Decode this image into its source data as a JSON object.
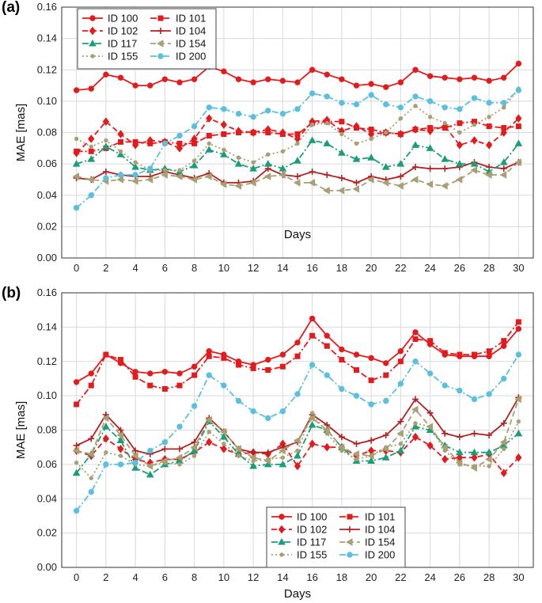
{
  "chart_data": [
    {
      "type": "line",
      "panel_label": "(a)",
      "xlabel": "Days",
      "ylabel": "MAE [mas]",
      "xlim": [
        -1,
        31
      ],
      "ylim": [
        0,
        0.16
      ],
      "xticks": [
        "0",
        "2",
        "4",
        "6",
        "8",
        "10",
        "12",
        "14",
        "16",
        "18",
        "20",
        "22",
        "24",
        "26",
        "28",
        "30"
      ],
      "yticks": [
        "0.00",
        "0.02",
        "0.04",
        "0.06",
        "0.08",
        "0.10",
        "0.12",
        "0.14",
        "0.16"
      ],
      "grid": true,
      "legend_position": "top-left",
      "x": [
        0,
        1,
        2,
        3,
        4,
        5,
        6,
        7,
        8,
        9,
        10,
        11,
        12,
        13,
        14,
        15,
        16,
        17,
        18,
        19,
        20,
        21,
        22,
        23,
        24,
        25,
        26,
        27,
        28,
        29,
        30
      ],
      "series": [
        {
          "name": "ID 100",
          "color": "#e41a1c",
          "style": "solid",
          "marker": "circle",
          "values": [
            0.107,
            0.108,
            0.117,
            0.115,
            0.11,
            0.11,
            0.114,
            0.112,
            0.114,
            0.122,
            0.119,
            0.114,
            0.112,
            0.114,
            0.113,
            0.112,
            0.12,
            0.117,
            0.114,
            0.11,
            0.111,
            0.109,
            0.112,
            0.12,
            0.116,
            0.115,
            0.114,
            0.115,
            0.113,
            0.115,
            0.124
          ]
        },
        {
          "name": "ID 101",
          "color": "#e41a1c",
          "style": "dashdot",
          "marker": "square",
          "values": [
            0.068,
            0.068,
            0.07,
            0.074,
            0.074,
            0.073,
            0.074,
            0.073,
            0.073,
            0.078,
            0.079,
            0.08,
            0.08,
            0.08,
            0.079,
            0.079,
            0.086,
            0.087,
            0.087,
            0.083,
            0.082,
            0.08,
            0.079,
            0.082,
            0.083,
            0.083,
            0.086,
            0.087,
            0.084,
            0.083,
            0.084
          ]
        },
        {
          "name": "ID 102",
          "color": "#e41a1c",
          "style": "dashed",
          "marker": "diamond",
          "values": [
            0.067,
            0.076,
            0.087,
            0.079,
            0.072,
            0.075,
            0.074,
            0.07,
            0.076,
            0.089,
            0.085,
            0.081,
            0.08,
            0.082,
            0.08,
            0.076,
            0.087,
            0.088,
            0.081,
            0.084,
            0.079,
            0.08,
            0.079,
            0.082,
            0.081,
            0.084,
            0.072,
            0.075,
            0.072,
            0.08,
            0.089
          ]
        },
        {
          "name": "ID 104",
          "color": "#b22222",
          "style": "solid",
          "marker": "plus",
          "values": [
            0.051,
            0.05,
            0.055,
            0.053,
            0.052,
            0.052,
            0.055,
            0.053,
            0.051,
            0.054,
            0.048,
            0.048,
            0.049,
            0.057,
            0.053,
            0.052,
            0.055,
            0.053,
            0.051,
            0.048,
            0.052,
            0.05,
            0.052,
            0.058,
            0.057,
            0.057,
            0.058,
            0.061,
            0.058,
            0.057,
            0.061
          ]
        },
        {
          "name": "ID 117",
          "color": "#1a9e77",
          "style": "dashdot",
          "marker": "triangle",
          "values": [
            0.06,
            0.063,
            0.071,
            0.066,
            0.058,
            0.056,
            0.057,
            0.055,
            0.059,
            0.069,
            0.066,
            0.06,
            0.057,
            0.06,
            0.057,
            0.062,
            0.075,
            0.073,
            0.067,
            0.063,
            0.064,
            0.058,
            0.06,
            0.072,
            0.07,
            0.063,
            0.06,
            0.06,
            0.055,
            0.061,
            0.073
          ]
        },
        {
          "name": "ID 154",
          "color": "#a8a073",
          "style": "dashed",
          "marker": "triangle-left",
          "values": [
            0.052,
            0.05,
            0.049,
            0.05,
            0.049,
            0.05,
            0.053,
            0.052,
            0.05,
            0.052,
            0.047,
            0.046,
            0.048,
            0.052,
            0.053,
            0.048,
            0.048,
            0.043,
            0.043,
            0.044,
            0.05,
            0.048,
            0.046,
            0.05,
            0.047,
            0.046,
            0.05,
            0.056,
            0.053,
            0.053,
            0.061
          ]
        },
        {
          "name": "ID 155",
          "color": "#a8a073",
          "style": "dotted",
          "marker": "dot",
          "values": [
            0.076,
            0.071,
            0.075,
            0.068,
            0.061,
            0.056,
            0.056,
            0.056,
            0.062,
            0.073,
            0.069,
            0.064,
            0.061,
            0.066,
            0.068,
            0.073,
            0.085,
            0.086,
            0.079,
            0.073,
            0.076,
            0.08,
            0.089,
            0.097,
            0.09,
            0.086,
            0.08,
            0.085,
            0.09,
            0.096,
            0.108
          ]
        },
        {
          "name": "ID 200",
          "color": "#5bc0de",
          "style": "dashdot",
          "marker": "circle",
          "values": [
            0.032,
            0.04,
            0.051,
            0.053,
            0.053,
            0.057,
            0.073,
            0.078,
            0.084,
            0.096,
            0.095,
            0.092,
            0.09,
            0.094,
            0.092,
            0.095,
            0.105,
            0.103,
            0.099,
            0.098,
            0.104,
            0.098,
            0.096,
            0.103,
            0.1,
            0.096,
            0.095,
            0.102,
            0.099,
            0.099,
            0.107
          ]
        }
      ]
    },
    {
      "type": "line",
      "panel_label": "(b)",
      "xlabel": "Days",
      "ylabel": "MAE [mas]",
      "xlim": [
        -1,
        31
      ],
      "ylim": [
        0,
        0.16
      ],
      "xticks": [
        "0",
        "2",
        "4",
        "6",
        "8",
        "10",
        "12",
        "14",
        "16",
        "18",
        "20",
        "22",
        "24",
        "26",
        "28",
        "30"
      ],
      "yticks": [
        "0.00",
        "0.02",
        "0.04",
        "0.06",
        "0.08",
        "0.10",
        "0.12",
        "0.14",
        "0.16"
      ],
      "grid": true,
      "legend_position": "bottom-center",
      "x": [
        0,
        1,
        2,
        3,
        4,
        5,
        6,
        7,
        8,
        9,
        10,
        11,
        12,
        13,
        14,
        15,
        16,
        17,
        18,
        19,
        20,
        21,
        22,
        23,
        24,
        25,
        26,
        27,
        28,
        29,
        30
      ],
      "series": [
        {
          "name": "ID 100",
          "color": "#e41a1c",
          "style": "solid",
          "marker": "circle",
          "values": [
            0.108,
            0.113,
            0.124,
            0.119,
            0.114,
            0.113,
            0.114,
            0.113,
            0.117,
            0.126,
            0.124,
            0.12,
            0.118,
            0.121,
            0.124,
            0.131,
            0.145,
            0.135,
            0.127,
            0.124,
            0.122,
            0.119,
            0.126,
            0.137,
            0.13,
            0.124,
            0.123,
            0.123,
            0.123,
            0.129,
            0.139
          ]
        },
        {
          "name": "ID 101",
          "color": "#e41a1c",
          "style": "dashdot",
          "marker": "square",
          "values": [
            0.095,
            0.106,
            0.124,
            0.121,
            0.111,
            0.106,
            0.104,
            0.106,
            0.112,
            0.123,
            0.122,
            0.118,
            0.116,
            0.115,
            0.117,
            0.123,
            0.135,
            0.129,
            0.121,
            0.115,
            0.109,
            0.112,
            0.12,
            0.133,
            0.132,
            0.125,
            0.124,
            0.124,
            0.126,
            0.132,
            0.143
          ]
        },
        {
          "name": "ID 102",
          "color": "#e41a1c",
          "style": "dashed",
          "marker": "diamond",
          "values": [
            0.068,
            0.065,
            0.075,
            0.069,
            0.063,
            0.061,
            0.063,
            0.063,
            0.067,
            0.073,
            0.069,
            0.066,
            0.067,
            0.066,
            0.072,
            0.059,
            0.072,
            0.07,
            0.07,
            0.065,
            0.068,
            0.068,
            0.067,
            0.076,
            0.071,
            0.063,
            0.064,
            0.064,
            0.066,
            0.055,
            0.064
          ]
        },
        {
          "name": "ID 104",
          "color": "#b22222",
          "style": "solid",
          "marker": "plus",
          "values": [
            0.071,
            0.075,
            0.089,
            0.08,
            0.068,
            0.066,
            0.069,
            0.069,
            0.073,
            0.087,
            0.079,
            0.069,
            0.067,
            0.067,
            0.07,
            0.073,
            0.089,
            0.083,
            0.076,
            0.072,
            0.074,
            0.077,
            0.085,
            0.098,
            0.09,
            0.078,
            0.076,
            0.078,
            0.077,
            0.084,
            0.099
          ]
        },
        {
          "name": "ID 117",
          "color": "#1a9e77",
          "style": "dashdot",
          "marker": "triangle",
          "values": [
            0.055,
            0.066,
            0.082,
            0.074,
            0.058,
            0.054,
            0.06,
            0.062,
            0.068,
            0.085,
            0.076,
            0.066,
            0.059,
            0.06,
            0.06,
            0.065,
            0.083,
            0.08,
            0.07,
            0.062,
            0.062,
            0.064,
            0.068,
            0.082,
            0.08,
            0.071,
            0.067,
            0.067,
            0.067,
            0.071,
            0.078
          ]
        },
        {
          "name": "ID 154",
          "color": "#a8a073",
          "style": "dashed",
          "marker": "triangle-left",
          "values": [
            0.068,
            0.066,
            0.087,
            0.077,
            0.065,
            0.059,
            0.062,
            0.064,
            0.07,
            0.086,
            0.079,
            0.069,
            0.064,
            0.062,
            0.068,
            0.074,
            0.087,
            0.08,
            0.07,
            0.066,
            0.065,
            0.069,
            0.078,
            0.092,
            0.082,
            0.07,
            0.061,
            0.058,
            0.063,
            0.073,
            0.098
          ]
        },
        {
          "name": "ID 155",
          "color": "#a8a073",
          "style": "dotted",
          "marker": "dot",
          "values": [
            0.061,
            0.052,
            0.067,
            0.065,
            0.06,
            0.059,
            0.061,
            0.06,
            0.065,
            0.079,
            0.072,
            0.065,
            0.062,
            0.063,
            0.064,
            0.068,
            0.09,
            0.078,
            0.068,
            0.063,
            0.065,
            0.07,
            0.072,
            0.084,
            0.082,
            0.068,
            0.06,
            0.059,
            0.059,
            0.069,
            0.085
          ]
        },
        {
          "name": "ID 200",
          "color": "#5bc0de",
          "style": "dashdot",
          "marker": "circle",
          "values": [
            0.033,
            0.044,
            0.06,
            0.06,
            0.061,
            0.068,
            0.073,
            0.082,
            0.094,
            0.112,
            0.106,
            0.097,
            0.091,
            0.087,
            0.091,
            0.101,
            0.118,
            0.112,
            0.104,
            0.1,
            0.095,
            0.097,
            0.107,
            0.12,
            0.113,
            0.106,
            0.103,
            0.098,
            0.101,
            0.11,
            0.124
          ]
        }
      ]
    }
  ]
}
